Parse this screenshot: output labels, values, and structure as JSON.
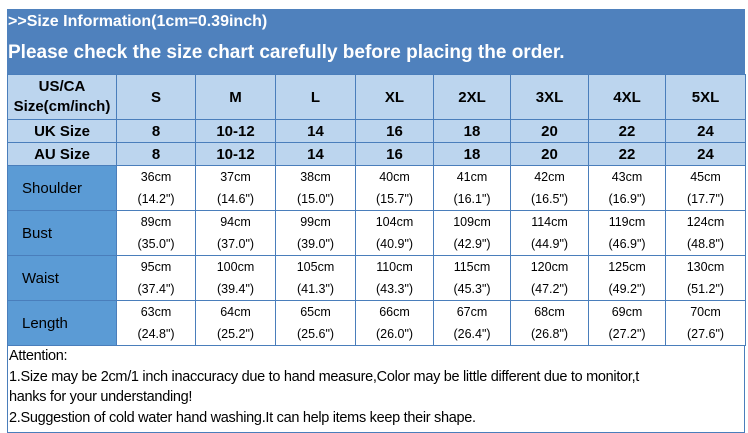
{
  "title": ">>Size Information(1cm=0.39inch)",
  "subtitle": "Please check the size chart carefully before placing the order.",
  "colors": {
    "banner": "#4f81bd",
    "header_cells": "#bcd5ee",
    "row_labels": "#5b9bd5",
    "border": "#4a7ebb"
  },
  "table": {
    "corner": [
      "US/CA",
      "Size(cm/inch)"
    ],
    "sizes": [
      "S",
      "M",
      "L",
      "XL",
      "2XL",
      "3XL",
      "4XL",
      "5XL"
    ],
    "uk": {
      "label": "UK Size",
      "values": [
        "8",
        "10-12",
        "14",
        "16",
        "18",
        "20",
        "22",
        "24"
      ]
    },
    "au": {
      "label": "AU Size",
      "values": [
        "8",
        "10-12",
        "14",
        "16",
        "18",
        "20",
        "22",
        "24"
      ]
    },
    "rows": [
      {
        "label": "Shoulder",
        "cm": [
          "36cm",
          "37cm",
          "38cm",
          "40cm",
          "41cm",
          "42cm",
          "43cm",
          "45cm"
        ],
        "inch": [
          "(14.2\")",
          "(14.6\")",
          "(15.0\")",
          "(15.7\")",
          "(16.1\")",
          "(16.5\")",
          "(16.9\")",
          "(17.7\")"
        ]
      },
      {
        "label": "Bust",
        "cm": [
          "89cm",
          "94cm",
          "99cm",
          "104cm",
          "109cm",
          "114cm",
          "119cm",
          "124cm"
        ],
        "inch": [
          "(35.0\")",
          "(37.0\")",
          "(39.0\")",
          "(40.9\")",
          "(42.9\")",
          "(44.9\")",
          "(46.9\")",
          "(48.8\")"
        ]
      },
      {
        "label": "Waist",
        "cm": [
          "95cm",
          "100cm",
          "105cm",
          "110cm",
          "115cm",
          "120cm",
          "125cm",
          "130cm"
        ],
        "inch": [
          "(37.4\")",
          "(39.4\")",
          "(41.3\")",
          "(43.3\")",
          "(45.3\")",
          "(47.2\")",
          "(49.2\")",
          "(51.2\")"
        ]
      },
      {
        "label": "Length",
        "cm": [
          "63cm",
          "64cm",
          "65cm",
          "66cm",
          "67cm",
          "68cm",
          "69cm",
          "70cm"
        ],
        "inch": [
          "(24.8\")",
          "(25.2\")",
          "(25.6\")",
          "(26.0\")",
          "(26.4\")",
          "(26.8\")",
          "(27.2\")",
          "(27.6\")"
        ]
      }
    ]
  },
  "attention": {
    "heading": "Attention:",
    "line1a": "1.Size may be 2cm/1 inch inaccuracy due to hand measure,Color may be little different due to monitor,t",
    "line1b": "hanks for your understanding!",
    "line2": "2.Suggestion of cold water hand washing.It can help items keep their shape."
  }
}
